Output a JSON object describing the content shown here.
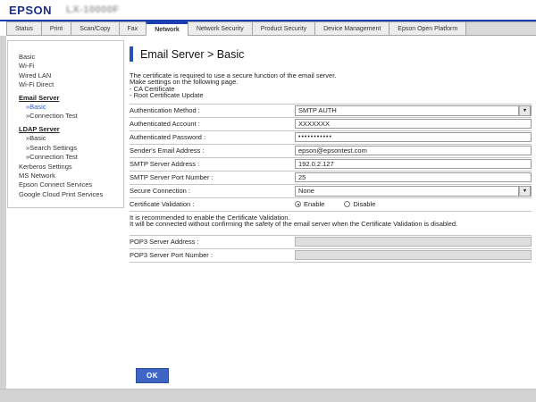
{
  "header": {
    "logo": "EPSON",
    "model": "LX-10000F"
  },
  "tabs": {
    "items": [
      {
        "label": "Status"
      },
      {
        "label": "Print"
      },
      {
        "label": "Scan/Copy"
      },
      {
        "label": "Fax"
      },
      {
        "label": "Network",
        "active": true
      },
      {
        "label": "Network Security"
      },
      {
        "label": "Product Security"
      },
      {
        "label": "Device Management"
      },
      {
        "label": "Epson Open Platform"
      }
    ]
  },
  "sidebar": {
    "items": [
      {
        "label": "Basic",
        "type": "item"
      },
      {
        "label": "Wi-Fi",
        "type": "item"
      },
      {
        "label": "Wired LAN",
        "type": "item"
      },
      {
        "label": "Wi-Fi Direct",
        "type": "item"
      },
      {
        "label": "Email Server",
        "type": "group"
      },
      {
        "label": "»Basic",
        "type": "sub",
        "active": true
      },
      {
        "label": "»Connection Test",
        "type": "sub"
      },
      {
        "label": "LDAP Server",
        "type": "group"
      },
      {
        "label": "»Basic",
        "type": "sub"
      },
      {
        "label": "»Search Settings",
        "type": "sub"
      },
      {
        "label": "»Connection Test",
        "type": "sub"
      },
      {
        "label": "Kerberos Settings",
        "type": "item"
      },
      {
        "label": "MS Network",
        "type": "item"
      },
      {
        "label": "Epson Connect Services",
        "type": "item"
      },
      {
        "label": "Google Cloud Print Services",
        "type": "item"
      }
    ]
  },
  "main": {
    "title": "Email Server > Basic",
    "intro": {
      "line1": "The certificate is required to use a secure function of the email server.",
      "line2": "Make settings on the following page.",
      "line3": "- CA Certificate",
      "line4": "- Root Certificate Update"
    },
    "form": {
      "auth_method": {
        "label": "Authentication Method :",
        "value": "SMTP AUTH"
      },
      "auth_account": {
        "label": "Authenticated Account :",
        "value": "XXXXXXX"
      },
      "auth_password": {
        "label": "Authenticated Password :",
        "value": "•••••••••••"
      },
      "sender_email": {
        "label": "Sender's Email Address :",
        "value": "epson@epsontest.com"
      },
      "smtp_address": {
        "label": "SMTP Server Address :",
        "value": "192.0.2.127"
      },
      "smtp_port": {
        "label": "SMTP Server Port Number :",
        "value": "25"
      },
      "secure_connection": {
        "label": "Secure Connection :",
        "value": "None"
      },
      "cert_validation": {
        "label": "Certificate Validation :",
        "enable": "Enable",
        "disable": "Disable",
        "selected": "Enable"
      }
    },
    "note": {
      "line1": "It is recommended to enable the Certificate Validation.",
      "line2": "It will be connected without confirming the safety of the email server when the Certificate Validation is disabled."
    },
    "pop3": {
      "address": {
        "label": "POP3 Server Address :",
        "value": ""
      },
      "port": {
        "label": "POP3 Server Port Number :",
        "value": ""
      }
    },
    "ok_label": "OK"
  },
  "colors": {
    "accent_blue": "#1d3eb0",
    "link_blue": "#2a5cd0",
    "button_blue": "#3f66c5"
  }
}
